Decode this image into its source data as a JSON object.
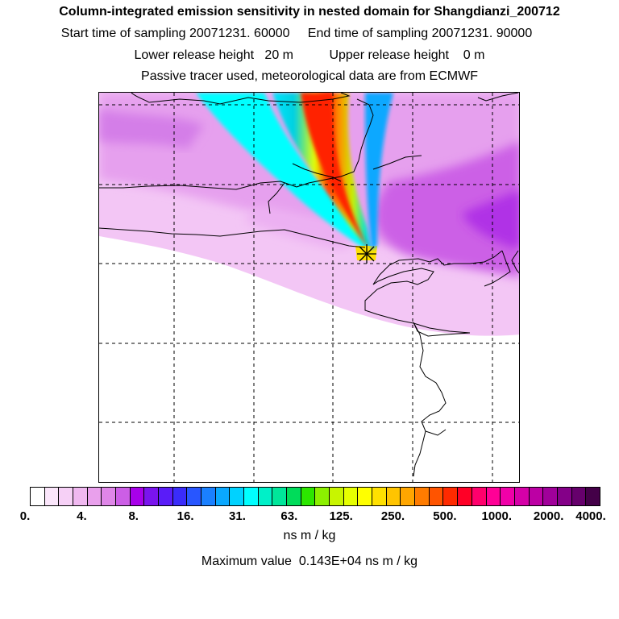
{
  "header": {
    "title": "Column-integrated emission sensitivity in nested domain for Shangdianzi_200712",
    "start_label": "Start time of sampling",
    "start_value": "20071231. 60000",
    "end_label": "End time of sampling",
    "end_value": "20071231. 90000",
    "lower_label": "Lower release height",
    "lower_value": "20 m",
    "upper_label": "Upper release height",
    "upper_value": "0 m",
    "note": "Passive tracer used, meteorological data are from ECMWF"
  },
  "map": {
    "station_name": "Shangdianzi",
    "marker": "star-icon"
  },
  "colorbar": {
    "colors": [
      "#ffffff",
      "#fbe6fb",
      "#f6d0f6",
      "#f0b8f0",
      "#e9a0ec",
      "#df86e8",
      "#cc5ee6",
      "#a800ea",
      "#7a14ee",
      "#5a1cf8",
      "#3a2cfa",
      "#2856ff",
      "#1a80ff",
      "#0aa8ff",
      "#00d2ff",
      "#00ffff",
      "#00f0c8",
      "#00e69a",
      "#00dc5a",
      "#2ce600",
      "#8cf000",
      "#c8f500",
      "#e6ff00",
      "#ffff00",
      "#ffe000",
      "#ffc400",
      "#ffa600",
      "#ff7c00",
      "#ff5400",
      "#ff2a00",
      "#ff0026",
      "#ff006c",
      "#ff0096",
      "#f000a8",
      "#d600a8",
      "#bc00a4",
      "#a0009a",
      "#840088",
      "#66006c",
      "#440048"
    ],
    "tick_labels": [
      "0.",
      "4.",
      "8.",
      "16.",
      "31.",
      "63.",
      "125.",
      "250.",
      "500.",
      "1000.",
      "2000.",
      "4000."
    ],
    "units": "ns m / kg"
  },
  "footer": {
    "max_label": "Maximum value",
    "max_value": "0.143E+04",
    "max_units": "ns m / kg"
  }
}
